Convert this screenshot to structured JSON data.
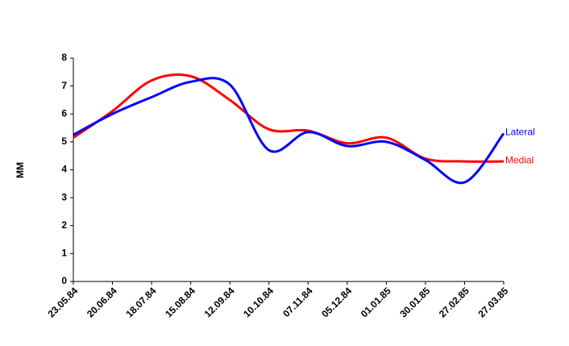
{
  "chart_data": {
    "type": "line",
    "y_label": "MM",
    "categories": [
      "23.05.84",
      "20.06.84",
      "18.07.84",
      "15.08.84",
      "12.09.84",
      "10.10.84",
      "07.11.84",
      "05.12.84",
      "01.01.85",
      "30.01.85",
      "27.02.85",
      "27.03.85"
    ],
    "series": [
      {
        "name": "Lateral",
        "color": "#0000ff",
        "values": [
          5.25,
          6.0,
          6.6,
          7.15,
          7.05,
          4.7,
          5.35,
          4.85,
          5.0,
          4.35,
          3.55,
          5.3
        ]
      },
      {
        "name": "Medial",
        "color": "#ff0000",
        "values": [
          5.15,
          6.1,
          7.2,
          7.35,
          6.5,
          5.45,
          5.4,
          4.95,
          5.15,
          4.4,
          4.3,
          4.3
        ]
      }
    ],
    "ylim": [
      0,
      8
    ],
    "yticks": [
      0,
      1,
      2,
      3,
      4,
      5,
      6,
      7,
      8
    ],
    "grid": false,
    "legend": "line-end"
  }
}
